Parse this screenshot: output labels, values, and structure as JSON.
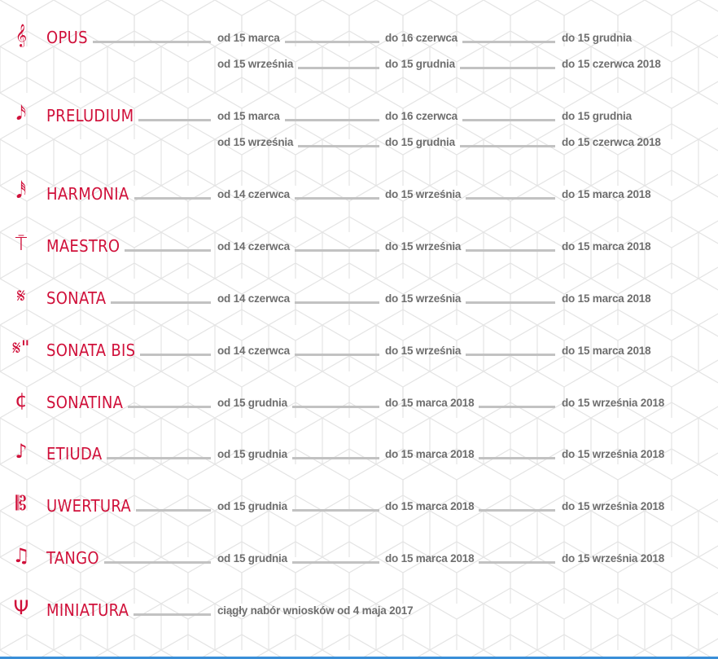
{
  "colors": {
    "accent": "#d0103a",
    "date_text": "#6e6e6e",
    "connector": "#c2c2c2",
    "bottom_rule": "#3a8fd8"
  },
  "programs": [
    {
      "name": "OPUS",
      "icon": "treble-clef-icon",
      "glyph": "𝄞",
      "lines": [
        [
          "od 15 marca",
          "do 16 czerwca",
          "do 15 grudnia"
        ],
        [
          "od 15 września",
          "do 15 grudnia",
          "do 15 czerwca 2018"
        ]
      ]
    },
    {
      "name": "PRELUDIUM",
      "icon": "sixteenth-note-icon",
      "glyph": "𝅘𝅥𝅯",
      "lines": [
        [
          "od 15 marca",
          "do 16 czerwca",
          "do 15 grudnia"
        ],
        [
          "od 15 września",
          "do 15 grudnia",
          "do 15 czerwca 2018"
        ]
      ]
    },
    {
      "name": "HARMONIA",
      "icon": "quarter-rest-note-icon",
      "glyph": "𝅘𝅥𝅰",
      "lines": [
        [
          "od 14 czerwca",
          "do 15 września",
          "do 15 marca 2018"
        ]
      ]
    },
    {
      "name": "MAESTRO",
      "icon": "fermata-stand-icon",
      "glyph": "⍑",
      "lines": [
        [
          "od 14 czerwca",
          "do 15 września",
          "do 15 marca 2018"
        ]
      ]
    },
    {
      "name": "SONATA",
      "icon": "segno-icon",
      "glyph": "𝄋",
      "lines": [
        [
          "od 14 czerwca",
          "do 15 września",
          "do 15 marca 2018"
        ]
      ]
    },
    {
      "name": "SONATA BIS",
      "icon": "segno-bis-icon",
      "glyph": "𝄋\"",
      "lines": [
        [
          "od 14 czerwca",
          "do 15 września",
          "do 15 marca 2018"
        ]
      ]
    },
    {
      "name": "SONATINA",
      "icon": "cut-time-icon",
      "glyph": "¢",
      "lines": [
        [
          "od 15 grudnia",
          "do 15 marca 2018",
          "do 15 września 2018"
        ]
      ]
    },
    {
      "name": "ETIUDA",
      "icon": "eighth-note-icon",
      "glyph": "♪",
      "lines": [
        [
          "od 15 grudnia",
          "do 15 marca 2018",
          "do 15 września 2018"
        ]
      ]
    },
    {
      "name": "UWERTURA",
      "icon": "alto-clef-icon",
      "glyph": "𝄡",
      "lines": [
        [
          "od 15 grudnia",
          "do 15 marca 2018",
          "do 15 września 2018"
        ]
      ]
    },
    {
      "name": "TANGO",
      "icon": "beamed-notes-icon",
      "glyph": "♫",
      "lines": [
        [
          "od 15 grudnia",
          "do 15 marca 2018",
          "do 15 września 2018"
        ]
      ]
    },
    {
      "name": "MINIATURA",
      "icon": "tuning-fork-icon",
      "glyph": "Ψ",
      "lines": [
        [
          "ciągły nabór wniosków od 4 maja 2017"
        ]
      ]
    }
  ]
}
